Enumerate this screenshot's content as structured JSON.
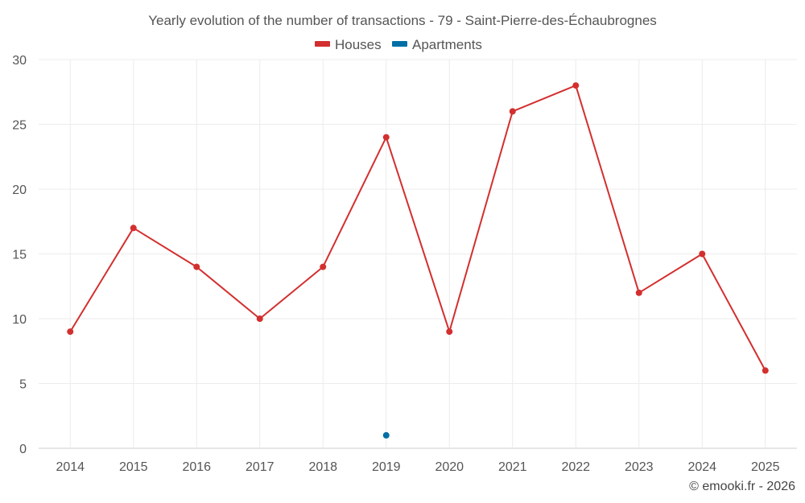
{
  "chart_data": {
    "type": "line",
    "title": "Yearly evolution of the number of transactions - 79 - Saint-Pierre-des-Échaubrognes",
    "categories": [
      "2014",
      "2015",
      "2016",
      "2017",
      "2018",
      "2019",
      "2020",
      "2021",
      "2022",
      "2023",
      "2024",
      "2025"
    ],
    "series": [
      {
        "name": "Houses",
        "color": "#d32f2f",
        "values": [
          9,
          17,
          14,
          10,
          14,
          24,
          9,
          26,
          28,
          12,
          15,
          6
        ]
      },
      {
        "name": "Apartments",
        "color": "#006fa6",
        "values": [
          null,
          null,
          null,
          null,
          null,
          1,
          null,
          null,
          null,
          null,
          null,
          null
        ]
      }
    ],
    "ylim": [
      0,
      30
    ],
    "yticks": [
      0,
      5,
      10,
      15,
      20,
      25,
      30
    ],
    "xlabel": "",
    "ylabel": "",
    "grid": true,
    "legend": "top-center"
  },
  "credit": "© emooki.fr - 2026"
}
